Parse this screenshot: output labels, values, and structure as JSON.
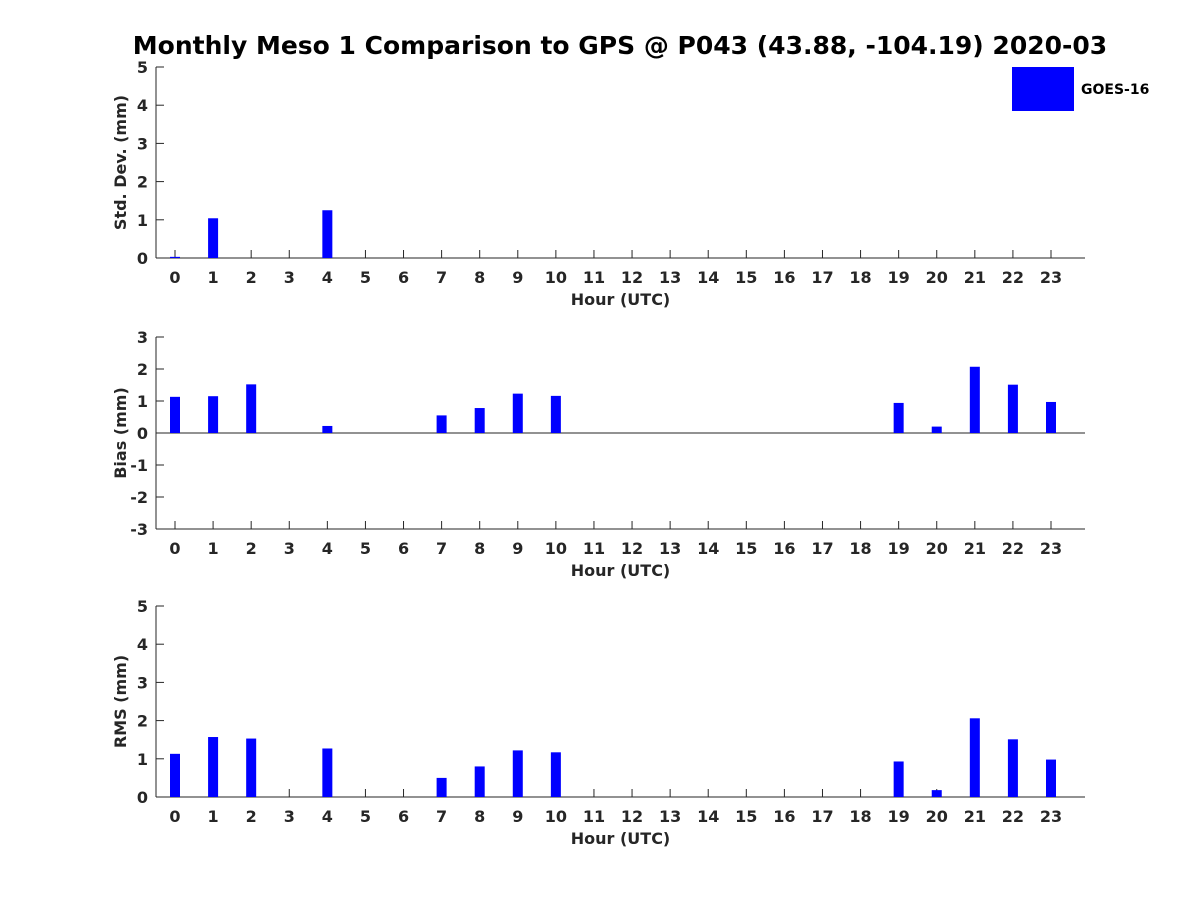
{
  "title": "Monthly Meso 1 Comparison to GPS @ P043 (43.88, -104.19) 2020-03",
  "legend": {
    "label": "GOES-16",
    "color": "#0000ff"
  },
  "chart_data": [
    {
      "type": "bar",
      "ylabel": "Std. Dev. (mm)",
      "xlabel": "Hour (UTC)",
      "ylim": [
        0,
        5
      ],
      "yticks": [
        "0",
        "1",
        "2",
        "3",
        "4",
        "5"
      ],
      "categories": [
        "0",
        "1",
        "2",
        "3",
        "4",
        "5",
        "6",
        "7",
        "8",
        "9",
        "10",
        "11",
        "12",
        "13",
        "14",
        "15",
        "16",
        "17",
        "18",
        "19",
        "20",
        "21",
        "22",
        "23"
      ],
      "series": [
        {
          "name": "GOES-16",
          "color": "#0000ff",
          "values": [
            0.03,
            1.04,
            null,
            null,
            1.25,
            null,
            null,
            null,
            null,
            null,
            null,
            null,
            null,
            null,
            null,
            null,
            null,
            null,
            null,
            null,
            null,
            null,
            null,
            null
          ]
        }
      ]
    },
    {
      "type": "bar",
      "ylabel": "Bias (mm)",
      "xlabel": "Hour (UTC)",
      "ylim": [
        -3,
        3
      ],
      "yticks": [
        "-3",
        "-2",
        "-1",
        "0",
        "1",
        "2",
        "3"
      ],
      "categories": [
        "0",
        "1",
        "2",
        "3",
        "4",
        "5",
        "6",
        "7",
        "8",
        "9",
        "10",
        "11",
        "12",
        "13",
        "14",
        "15",
        "16",
        "17",
        "18",
        "19",
        "20",
        "21",
        "22",
        "23"
      ],
      "series": [
        {
          "name": "GOES-16",
          "color": "#0000ff",
          "values": [
            1.13,
            1.15,
            1.52,
            null,
            0.22,
            null,
            null,
            0.55,
            0.78,
            1.23,
            1.16,
            null,
            null,
            null,
            null,
            null,
            null,
            null,
            null,
            0.94,
            0.2,
            2.07,
            1.51,
            0.97
          ]
        }
      ]
    },
    {
      "type": "bar",
      "ylabel": "RMS (mm)",
      "xlabel": "Hour (UTC)",
      "ylim": [
        0,
        5
      ],
      "yticks": [
        "0",
        "1",
        "2",
        "3",
        "4",
        "5"
      ],
      "categories": [
        "0",
        "1",
        "2",
        "3",
        "4",
        "5",
        "6",
        "7",
        "8",
        "9",
        "10",
        "11",
        "12",
        "13",
        "14",
        "15",
        "16",
        "17",
        "18",
        "19",
        "20",
        "21",
        "22",
        "23"
      ],
      "series": [
        {
          "name": "GOES-16",
          "color": "#0000ff",
          "values": [
            1.13,
            1.57,
            1.53,
            null,
            1.27,
            null,
            null,
            0.5,
            0.8,
            1.22,
            1.17,
            null,
            null,
            null,
            null,
            null,
            null,
            null,
            null,
            0.93,
            0.18,
            2.06,
            1.51,
            0.98
          ]
        }
      ]
    }
  ]
}
